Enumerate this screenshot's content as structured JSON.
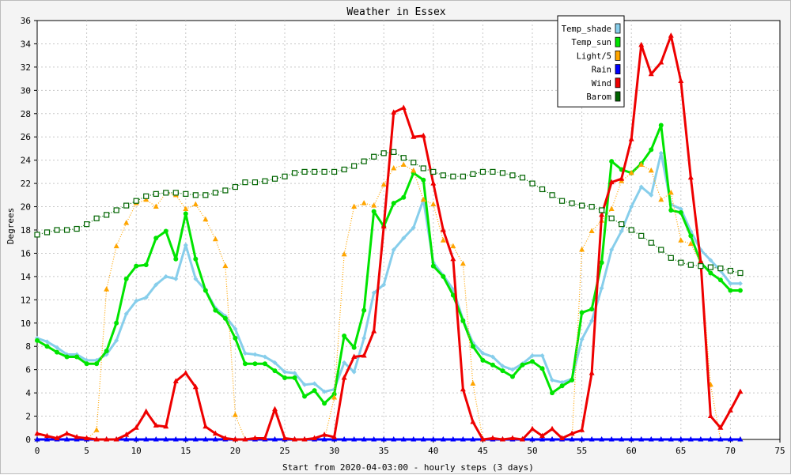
{
  "chart_data": {
    "type": "line",
    "title": "Weather in Essex",
    "xlabel": "Start from 2020-04-03:00 - hourly steps (3 days)",
    "ylabel": "Degrees",
    "xlim": [
      0,
      75
    ],
    "ylim": [
      0,
      36
    ],
    "xticks": [
      0,
      5,
      10,
      15,
      20,
      25,
      30,
      35,
      40,
      45,
      50,
      55,
      60,
      65,
      70,
      75
    ],
    "yticks": [
      0,
      2,
      4,
      6,
      8,
      10,
      12,
      14,
      16,
      18,
      20,
      22,
      24,
      26,
      28,
      30,
      32,
      34,
      36
    ],
    "grid": true,
    "legend_position": "top-right",
    "x": [
      0,
      1,
      2,
      3,
      4,
      5,
      6,
      7,
      8,
      9,
      10,
      11,
      12,
      13,
      14,
      15,
      16,
      17,
      18,
      19,
      20,
      21,
      22,
      23,
      24,
      25,
      26,
      27,
      28,
      29,
      30,
      31,
      32,
      33,
      34,
      35,
      36,
      37,
      38,
      39,
      40,
      41,
      42,
      43,
      44,
      45,
      46,
      47,
      48,
      49,
      50,
      51,
      52,
      53,
      54,
      55,
      56,
      57,
      58,
      59,
      60,
      61,
      62,
      63,
      64,
      65,
      66,
      67,
      68,
      69,
      70,
      71
    ],
    "series": [
      {
        "name": "Temp_shade",
        "color": "#87ceeb",
        "style": "solid",
        "marker": "diamond",
        "values": [
          8.7,
          8.4,
          7.9,
          7.3,
          7.3,
          6.8,
          6.8,
          7.3,
          8.5,
          10.8,
          11.9,
          12.2,
          13.3,
          14.0,
          13.8,
          16.7,
          13.8,
          12.8,
          11.3,
          10.6,
          9.5,
          7.4,
          7.3,
          7.1,
          6.6,
          5.8,
          5.7,
          4.7,
          4.8,
          4.1,
          4.3,
          6.6,
          5.8,
          8.7,
          12.6,
          13.3,
          16.3,
          17.3,
          18.2,
          20.6,
          15.2,
          14.1,
          12.9,
          10.3,
          8.3,
          7.4,
          7.1,
          6.3,
          6.0,
          6.5,
          7.2,
          7.2,
          5.1,
          4.9,
          5.2,
          8.6,
          10.2,
          13.0,
          16.3,
          17.9,
          20.0,
          21.7,
          21.0,
          24.6,
          20.2,
          19.8,
          17.9,
          16.3,
          15.4,
          14.5,
          13.4,
          13.4
        ]
      },
      {
        "name": "Temp_sun",
        "color": "#00e400",
        "style": "solid",
        "marker": "circle",
        "values": [
          8.5,
          8.0,
          7.5,
          7.1,
          7.1,
          6.5,
          6.5,
          7.6,
          10.0,
          13.8,
          14.9,
          15.0,
          17.3,
          17.9,
          15.5,
          19.4,
          15.5,
          12.8,
          11.1,
          10.4,
          8.7,
          6.5,
          6.5,
          6.5,
          5.9,
          5.3,
          5.3,
          3.7,
          4.2,
          3.1,
          3.9,
          8.9,
          7.9,
          11.1,
          19.6,
          18.3,
          20.3,
          20.8,
          22.9,
          22.3,
          14.9,
          14.0,
          12.4,
          10.2,
          8.0,
          6.8,
          6.4,
          5.9,
          5.4,
          6.4,
          6.7,
          6.1,
          4.0,
          4.6,
          5.1,
          10.9,
          11.2,
          15.2,
          23.9,
          23.2,
          22.9,
          23.7,
          24.9,
          27.0,
          19.7,
          19.5,
          17.5,
          15.2,
          14.3,
          13.7,
          12.8,
          12.8
        ]
      },
      {
        "name": "Light/5",
        "color": "#ffa500",
        "style": "dotted",
        "marker": "triangle",
        "values": [
          0,
          0,
          0,
          0,
          0,
          0,
          0.8,
          12.9,
          16.6,
          18.6,
          20.3,
          20.6,
          20.0,
          21.2,
          21.0,
          19.8,
          20.2,
          18.9,
          17.2,
          14.9,
          2.1,
          0,
          0,
          0,
          0,
          0,
          0,
          0,
          0,
          0,
          3.6,
          15.9,
          20.0,
          20.3,
          20.1,
          21.9,
          23.3,
          23.6,
          23.1,
          20.6,
          20.2,
          17.1,
          16.6,
          15.1,
          4.8,
          0,
          0,
          0,
          0,
          0,
          0,
          0,
          0,
          0,
          0,
          16.3,
          17.9,
          18.8,
          19.8,
          22.2,
          22.9,
          23.6,
          23.1,
          20.6,
          21.2,
          17.1,
          16.8,
          15.2,
          4.7,
          0,
          0,
          0
        ]
      },
      {
        "name": "Rain",
        "color": "#0000ff",
        "style": "solid",
        "marker": "triangle",
        "values": [
          0,
          0,
          0,
          0,
          0,
          0,
          0,
          0,
          0,
          0,
          0,
          0,
          0,
          0,
          0,
          0,
          0,
          0,
          0,
          0,
          0,
          0,
          0,
          0,
          0,
          0,
          0,
          0,
          0,
          0,
          0,
          0,
          0,
          0,
          0,
          0,
          0,
          0,
          0,
          0,
          0,
          0,
          0,
          0,
          0,
          0,
          0,
          0,
          0,
          0,
          0,
          0,
          0,
          0,
          0,
          0,
          0,
          0,
          0,
          0,
          0,
          0,
          0,
          0,
          0,
          0,
          0,
          0,
          0,
          0,
          0,
          0
        ]
      },
      {
        "name": "Wind",
        "color": "#ee0000",
        "style": "solid",
        "marker": "triangle",
        "values": [
          0.5,
          0.3,
          0.1,
          0.5,
          0.2,
          0.1,
          0,
          0,
          0,
          0.4,
          1.0,
          2.4,
          1.2,
          1.1,
          5.0,
          5.7,
          4.5,
          1.1,
          0.5,
          0.1,
          0,
          0,
          0.1,
          0.1,
          2.6,
          0.1,
          0,
          0,
          0.1,
          0.4,
          0.2,
          5.3,
          7.1,
          7.2,
          9.3,
          18.3,
          28.1,
          28.5,
          26.0,
          26.1,
          22.0,
          18.0,
          15.5,
          4.3,
          1.5,
          0,
          0.1,
          0,
          0.1,
          0,
          0.9,
          0.3,
          0.9,
          0.1,
          0.5,
          0.8,
          5.7,
          19.3,
          22.1,
          22.4,
          25.8,
          33.9,
          31.4,
          32.4,
          34.7,
          30.8,
          22.5,
          15.3,
          2.0,
          1.0,
          2.5,
          4.1
        ]
      },
      {
        "name": "Barom",
        "color": "#006400",
        "style": "dotted",
        "marker": "square",
        "values": [
          17.6,
          17.8,
          18.0,
          18.0,
          18.1,
          18.5,
          19.0,
          19.3,
          19.7,
          20.1,
          20.5,
          20.9,
          21.1,
          21.2,
          21.2,
          21.1,
          21.0,
          21.0,
          21.2,
          21.4,
          21.7,
          22.1,
          22.1,
          22.2,
          22.4,
          22.6,
          22.9,
          23.0,
          23.0,
          23.0,
          23.0,
          23.2,
          23.5,
          23.9,
          24.3,
          24.6,
          24.7,
          24.2,
          23.8,
          23.3,
          23.0,
          22.7,
          22.6,
          22.6,
          22.8,
          23.0,
          23.0,
          22.9,
          22.7,
          22.5,
          22.0,
          21.5,
          21.0,
          20.5,
          20.3,
          20.1,
          20.0,
          19.7,
          19.0,
          18.5,
          18.0,
          17.5,
          16.9,
          16.3,
          15.6,
          15.2,
          15.0,
          14.9,
          14.8,
          14.7,
          14.5,
          14.3
        ]
      }
    ]
  }
}
